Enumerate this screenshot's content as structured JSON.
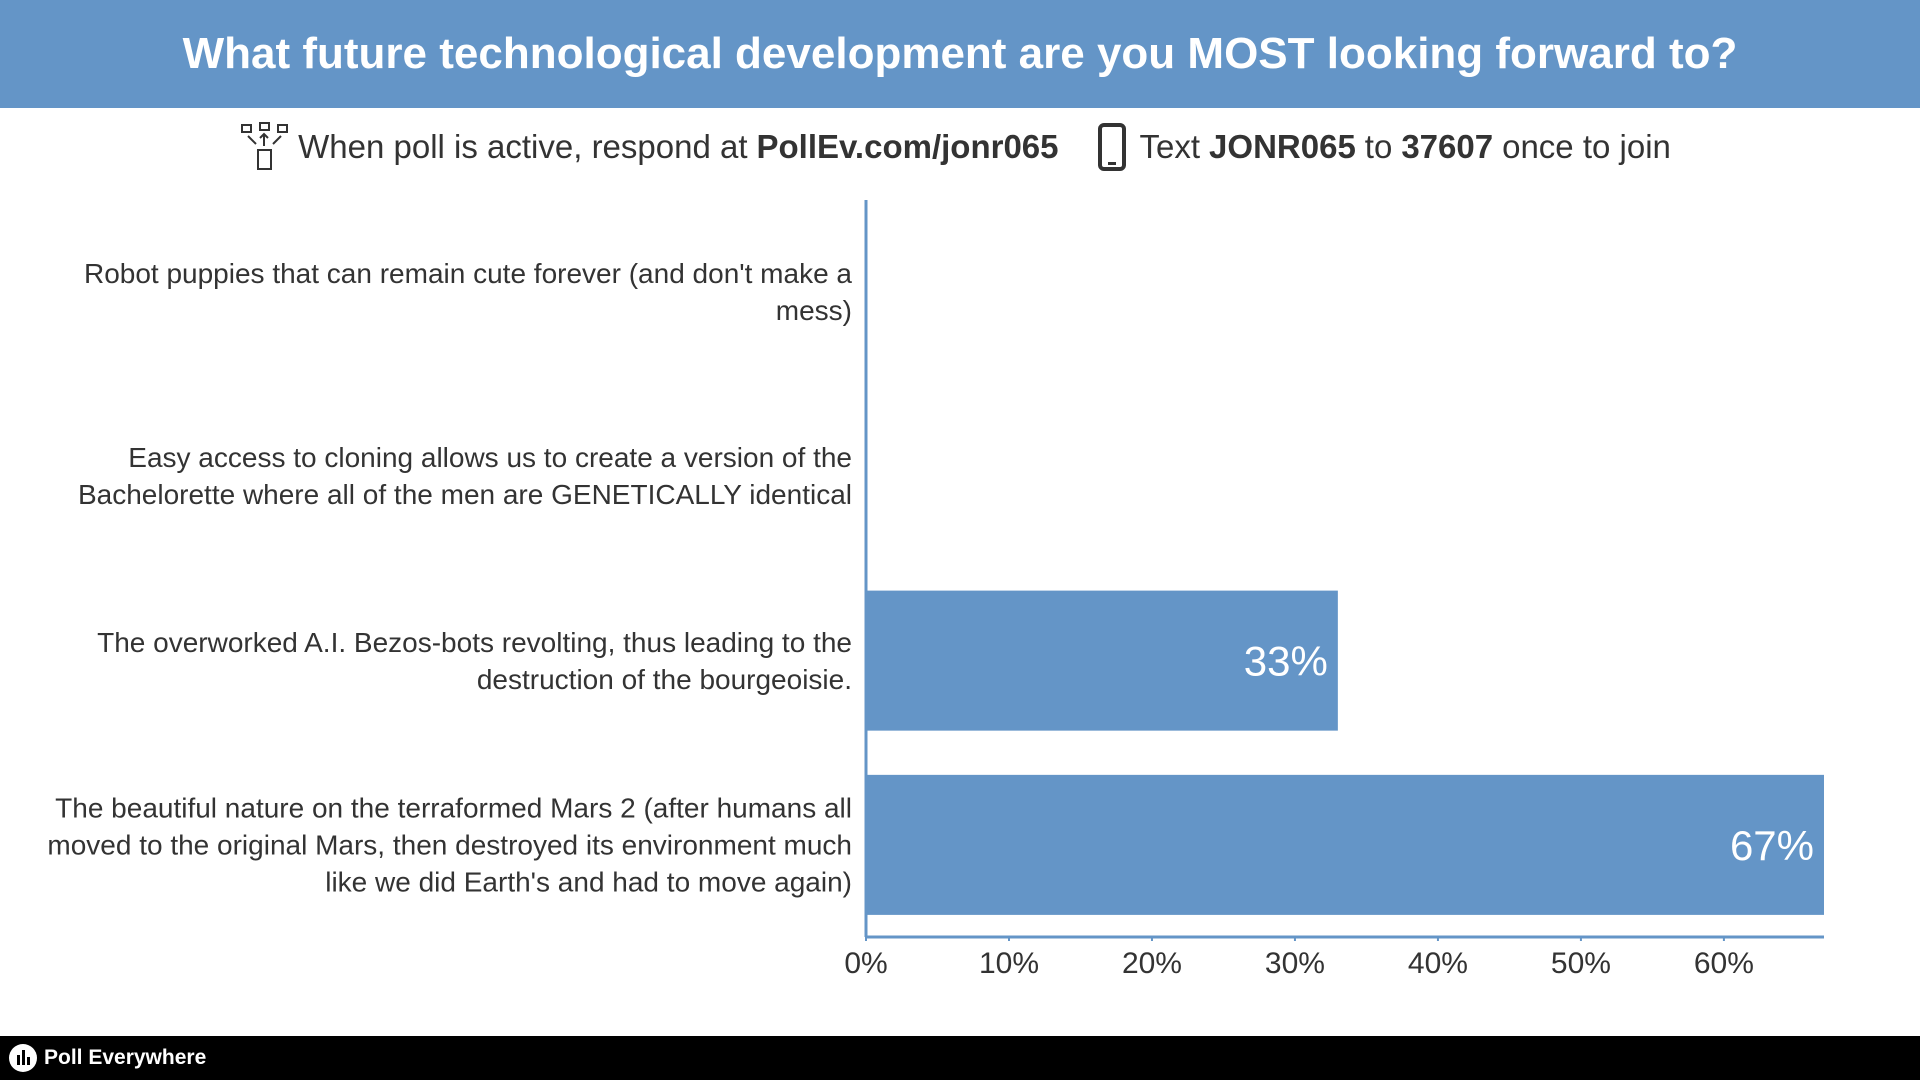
{
  "header": {
    "title": "What future technological development are you MOST looking forward to?",
    "instructions": {
      "web": [
        "When poll is active, respond at",
        "PollEv.com/jonr065"
      ],
      "sms": [
        "Text",
        "JONR065",
        "to",
        "37607",
        "once to join"
      ]
    }
  },
  "chart_data": {
    "type": "bar",
    "orientation": "horizontal",
    "categories": [
      "Robot puppies that can remain cute forever (and don't make a mess)",
      "Easy access to cloning allows us to create a version of the Bachelorette where all of the men are GENETICALLY identical",
      "The overworked A.I. Bezos-bots revolting, thus leading to the destruction of the bourgeoisie.",
      "The beautiful nature on the terraformed Mars 2 (after humans all moved to the original Mars, then destroyed its environment much like we did Earth's and had to move again)"
    ],
    "values": [
      0,
      0,
      33,
      67
    ],
    "value_labels": [
      null,
      null,
      "33%",
      "67%"
    ],
    "color": "#6495c7",
    "xlim": [
      0,
      67
    ],
    "xticks": [
      {
        "value": 0,
        "label": "0%"
      },
      {
        "value": 10,
        "label": "10%"
      },
      {
        "value": 20,
        "label": "20%"
      },
      {
        "value": 30,
        "label": "30%"
      },
      {
        "value": 40,
        "label": "40%"
      },
      {
        "value": 50,
        "label": "50%"
      },
      {
        "value": 60,
        "label": "60%"
      }
    ]
  },
  "footer": {
    "brand": "Poll Everywhere"
  }
}
